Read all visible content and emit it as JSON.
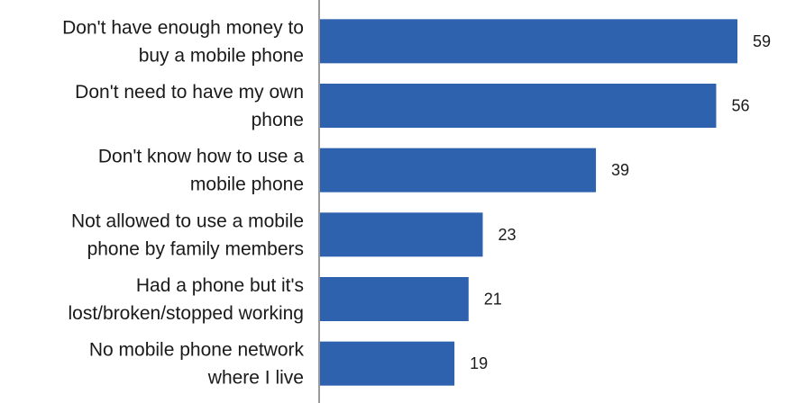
{
  "chart_data": {
    "type": "bar",
    "orientation": "horizontal",
    "categories": [
      [
        "Don't have enough money to",
        "buy a mobile phone"
      ],
      [
        "Don't need to have my own",
        "phone"
      ],
      [
        "Don't know how to use a",
        "mobile phone"
      ],
      [
        "Not allowed to use a mobile",
        "phone by family members"
      ],
      [
        "Had a phone but it's",
        "lost/broken/stopped working"
      ],
      [
        "No mobile phone network",
        "where I live"
      ]
    ],
    "values": [
      59,
      56,
      39,
      23,
      21,
      19
    ],
    "value_labels": [
      "59",
      "56",
      "39",
      "23",
      "21",
      "19"
    ],
    "title": "",
    "xlabel": "",
    "ylabel": "",
    "xlim": [
      0,
      65
    ],
    "grid": false,
    "legend": "none",
    "bar_color": "#2E62AE",
    "axis_color": "#9a9a9a"
  }
}
